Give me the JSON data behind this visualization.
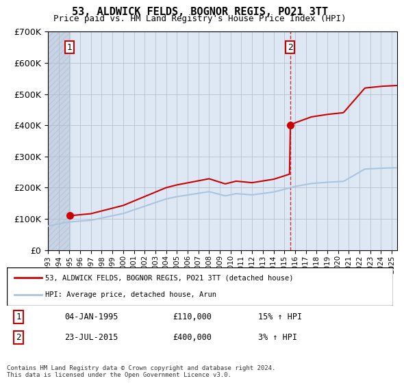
{
  "title": "53, ALDWICK FELDS, BOGNOR REGIS, PO21 3TT",
  "subtitle": "Price paid vs. HM Land Registry's House Price Index (HPI)",
  "legend_line1": "53, ALDWICK FELDS, BOGNOR REGIS, PO21 3TT (detached house)",
  "legend_line2": "HPI: Average price, detached house, Arun",
  "table_row1": [
    "1",
    "04-JAN-1995",
    "£110,000",
    "15% ↑ HPI"
  ],
  "table_row2": [
    "2",
    "23-JUL-2015",
    "£400,000",
    "3% ↑ HPI"
  ],
  "footer": "Contains HM Land Registry data © Crown copyright and database right 2024.\nThis data is licensed under the Open Government Licence v3.0.",
  "purchase1_year": 1995.01,
  "purchase1_price": 110000,
  "purchase2_year": 2015.55,
  "purchase2_price": 400000,
  "ylim": [
    0,
    700000
  ],
  "xlim_start": 1993,
  "xlim_end": 2025.5,
  "hpi_color": "#aac4e0",
  "price_color": "#cc0000",
  "marker_color": "#cc0000",
  "background_hatch_color": "#d0d8e8",
  "background_main_color": "#e8f0f8"
}
